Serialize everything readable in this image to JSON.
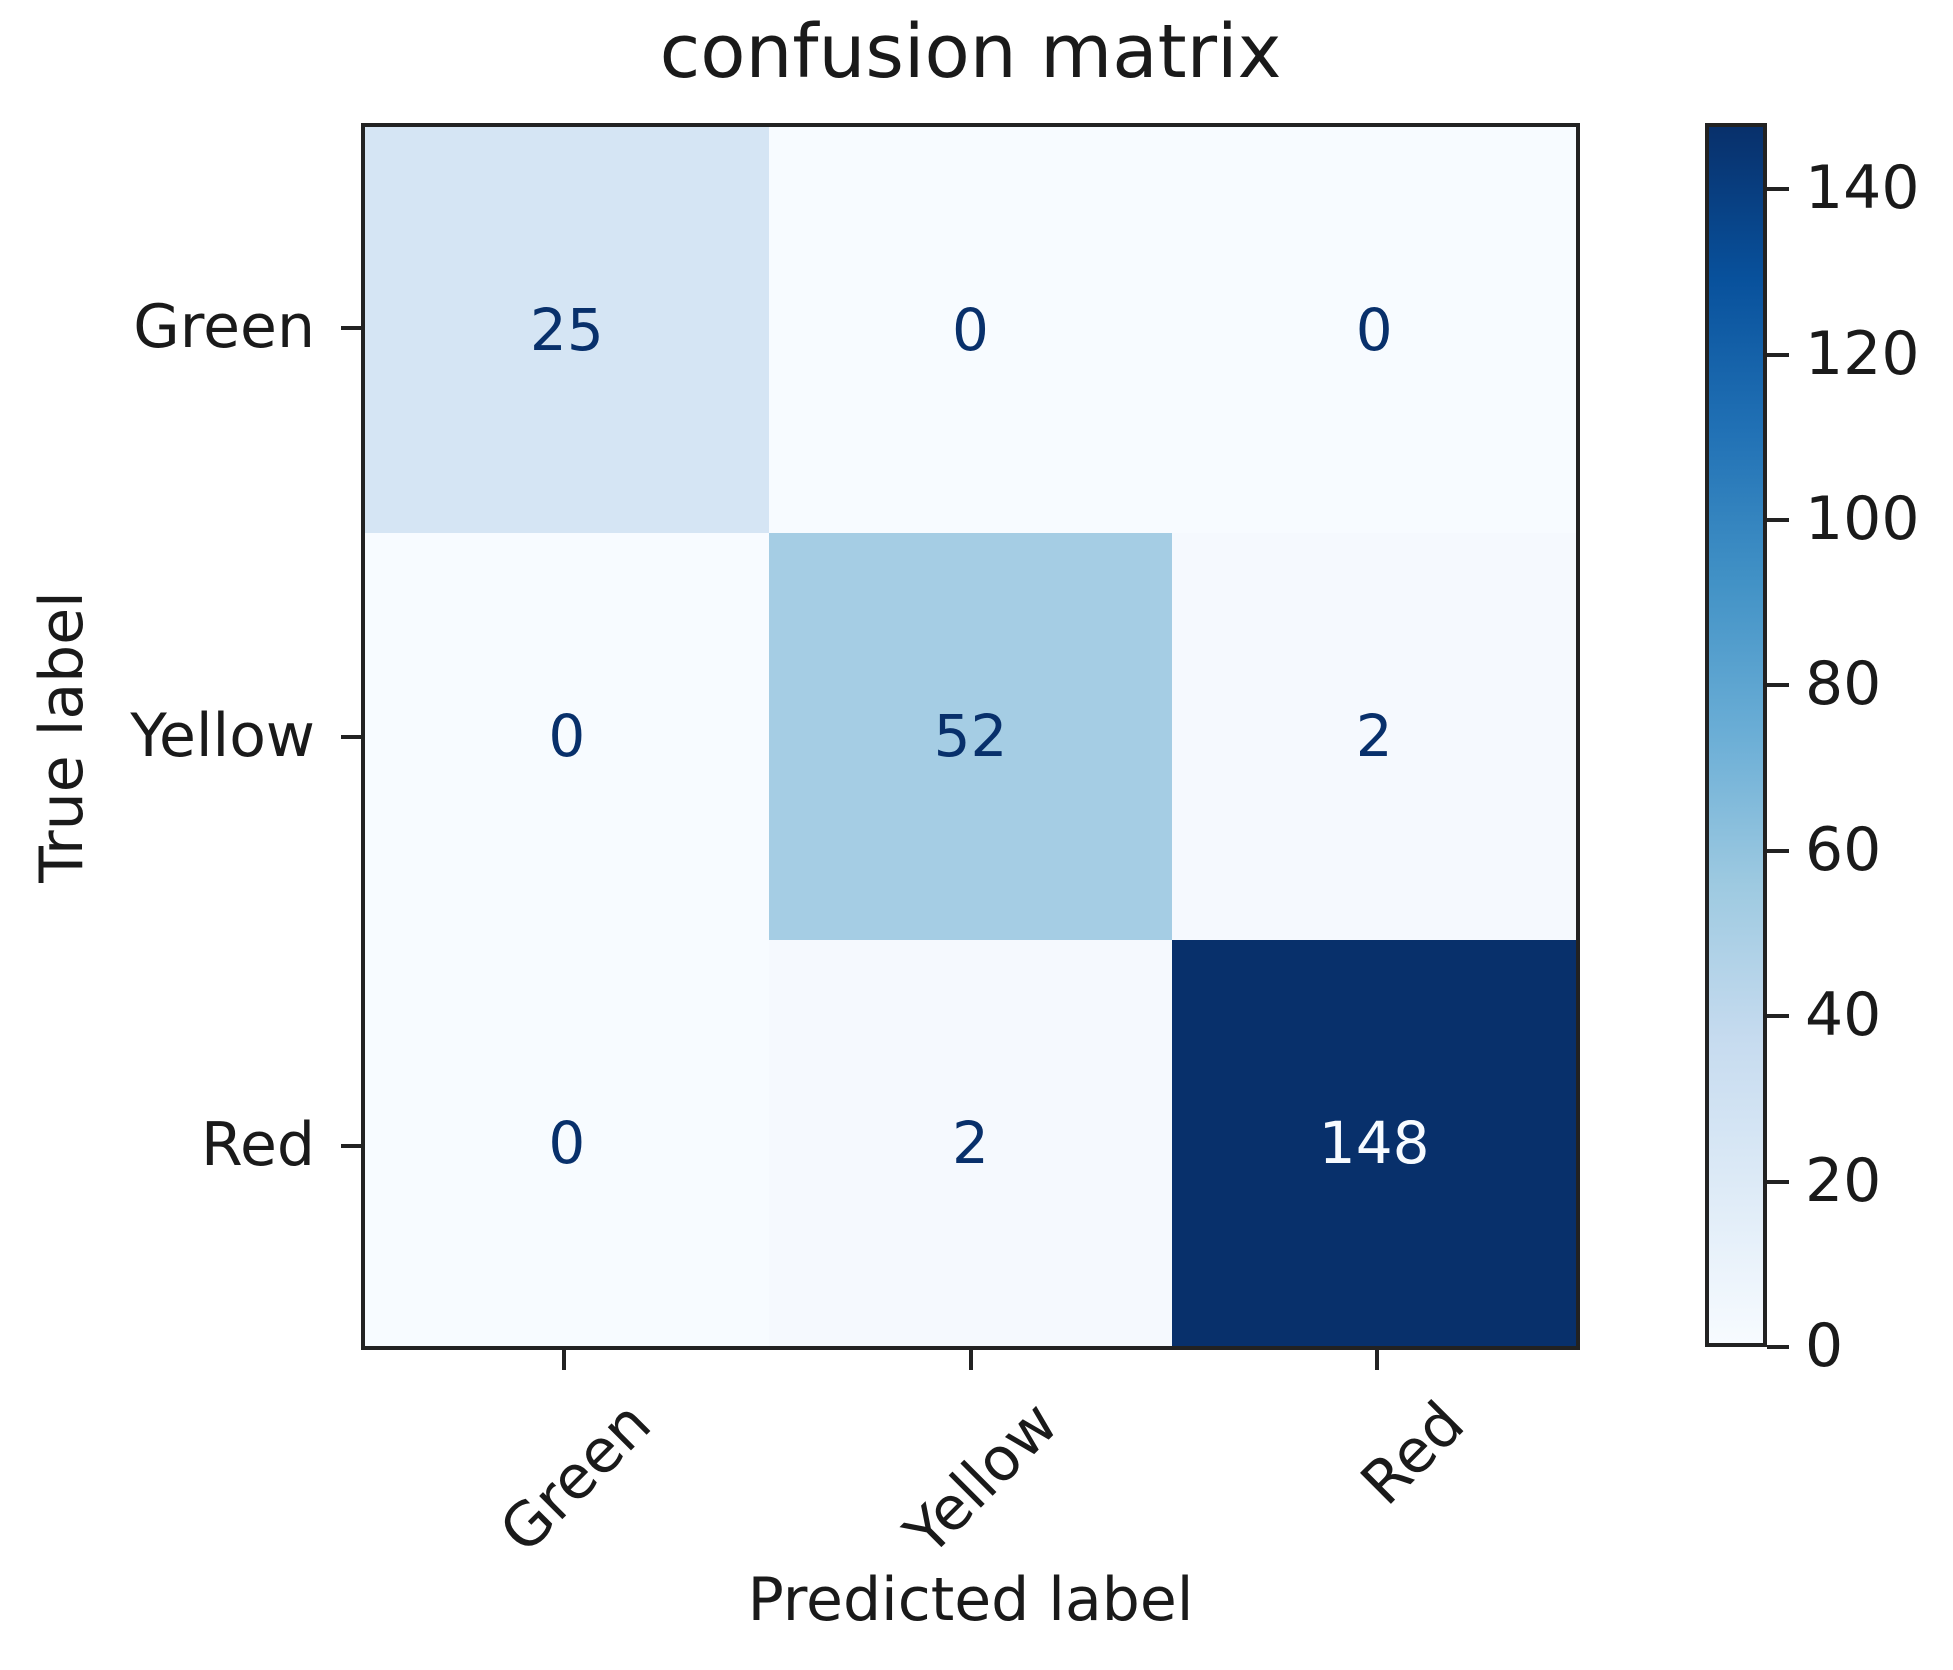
{
  "chart_data": {
    "type": "heatmap",
    "title": "confusion matrix",
    "xlabel": "Predicted label",
    "ylabel": "True label",
    "categories": [
      "Green",
      "Yellow",
      "Red"
    ],
    "matrix": [
      [
        25,
        0,
        0
      ],
      [
        0,
        52,
        2
      ],
      [
        0,
        2,
        148
      ]
    ],
    "vmin": 0,
    "vmax": 148,
    "colormap": "Blues",
    "colorbar_ticks": [
      0,
      20,
      40,
      60,
      80,
      100,
      120,
      140
    ],
    "colorbar_position": "right",
    "grid": false,
    "cell_colors": [
      [
        "#d5e5f4",
        "#f7fbff",
        "#f7fbff"
      ],
      [
        "#f7fbff",
        "#a5cde4",
        "#f5f9fe"
      ],
      [
        "#f7fbff",
        "#f5f9fe",
        "#08306b"
      ]
    ],
    "text_threshold": 74,
    "text_color_dark": "#08306b",
    "text_color_light": "#f7fbff"
  },
  "colors": {
    "background": "#ffffff",
    "axis": "#222222",
    "label_text": "#1a1a1a",
    "colormap_stops": [
      "#f7fbff",
      "#deebf7",
      "#c6dbef",
      "#9ecae1",
      "#6baed6",
      "#4292c6",
      "#2171b5",
      "#08519c",
      "#08306b"
    ]
  }
}
